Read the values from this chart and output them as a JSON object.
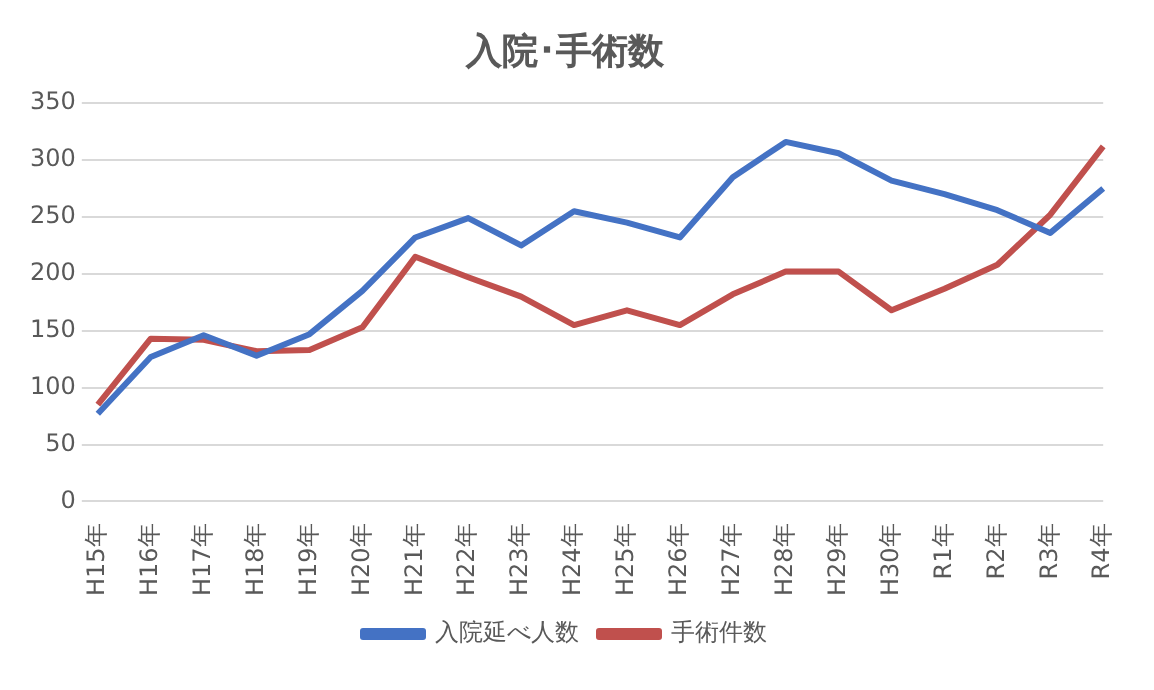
{
  "chart_data": {
    "type": "line",
    "title": "入院･手術数",
    "categories": [
      "H15年",
      "H16年",
      "H17年",
      "H18年",
      "H19年",
      "H20年",
      "H21年",
      "H22年",
      "H23年",
      "H24年",
      "H25年",
      "H26年",
      "H27年",
      "H28年",
      "H29年",
      "H30年",
      "R1年",
      "R2年",
      "R3年",
      "R4年"
    ],
    "series": [
      {
        "name": "入院延べ人数",
        "color": "#4472c4",
        "values": [
          77,
          127,
          146,
          128,
          147,
          185,
          232,
          249,
          225,
          255,
          245,
          232,
          285,
          316,
          306,
          282,
          270,
          256,
          236,
          275
        ]
      },
      {
        "name": "手術件数",
        "color": "#c0504d",
        "values": [
          85,
          143,
          142,
          132,
          133,
          153,
          215,
          197,
          180,
          155,
          168,
          155,
          182,
          202,
          202,
          168,
          187,
          208,
          252,
          312
        ]
      }
    ],
    "ylim": [
      0,
      350
    ],
    "yticks": [
      0,
      50,
      100,
      150,
      200,
      250,
      300,
      350
    ],
    "grid": "y",
    "legend": "bottom",
    "marker": "none",
    "line_style": "solid"
  }
}
